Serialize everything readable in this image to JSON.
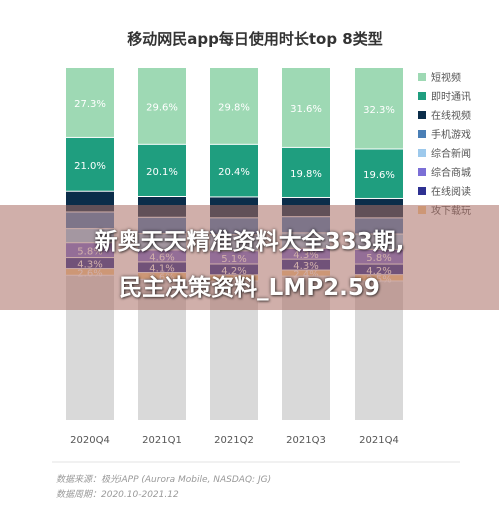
{
  "chart_data": {
    "type": "bar",
    "stacked": true,
    "percent_stacked": true,
    "title": "移动网民app每日使用时长top 8类型",
    "categories": [
      "2020Q4",
      "2021Q1",
      "2021Q2",
      "2021Q3",
      "2021Q4"
    ],
    "legend_position": "right",
    "series_order_bottom_to_top": [
      "other",
      "攻下载玩",
      "在线阅读",
      "综合商城",
      "综合新闻",
      "手机游戏",
      "在线视频",
      "即时通讯",
      "短视频"
    ],
    "series": [
      {
        "key": "other",
        "name": "",
        "color": "#d9d9d9",
        "values": [
          56.7,
          54.4,
          54.1,
          57.1,
          55.3
        ],
        "show_label": false
      },
      {
        "key": "攻下载玩",
        "name": "攻下载玩",
        "color": "#f8c98c",
        "values": [
          2.6,
          2.6,
          2.4,
          2.4,
          2.5
        ],
        "show_label": true
      },
      {
        "key": "在线阅读",
        "name": "在线阅读",
        "color": "#2e3192",
        "values": [
          4.3,
          4.1,
          4.2,
          4.3,
          4.2
        ],
        "show_label": true
      },
      {
        "key": "综合商城",
        "name": "综合商城",
        "color": "#7b6fd6",
        "values": [
          5.8,
          4.6,
          5.1,
          4.3,
          5.8
        ],
        "show_label": true
      },
      {
        "key": "综合新闻",
        "name": "综合新闻",
        "color": "#9dc9ec",
        "values": [
          5.5,
          6.3,
          6.3,
          6.1,
          6.1
        ],
        "show_label": false
      },
      {
        "key": "手机游戏",
        "name": "手机游戏",
        "color": "#4a7fb6",
        "values": [
          6.5,
          6.3,
          6.5,
          6.4,
          6.4
        ],
        "show_label": false
      },
      {
        "key": "在线视频",
        "name": "在线视频",
        "color": "#0b2d4a",
        "values": [
          8.1,
          8.0,
          8.1,
          7.6,
          7.7
        ],
        "show_label": false
      },
      {
        "key": "即时通讯",
        "name": "即时通讯",
        "color": "#1f9e7f",
        "values": [
          21.0,
          20.1,
          20.4,
          19.8,
          19.6
        ],
        "show_label": true
      },
      {
        "key": "短视频",
        "name": "短视频",
        "color": "#9ed9b4",
        "values": [
          27.3,
          29.6,
          29.8,
          31.6,
          32.3
        ],
        "show_label": true
      }
    ],
    "legend": [
      "短视频",
      "即时通讯",
      "在线视频",
      "手机游戏",
      "综合新闻",
      "综合商城",
      "在线阅读",
      "攻下载玩"
    ]
  },
  "footnote": {
    "line1": "数据来源：极光iAPP (Aurora Mobile, NASDAQ: JG)",
    "line2": "数据周期：2020.10-2021.12"
  },
  "overlay": {
    "line1": "新奥天天精准资料大全333期,",
    "line2": "民主决策资料_LMP2.59"
  }
}
